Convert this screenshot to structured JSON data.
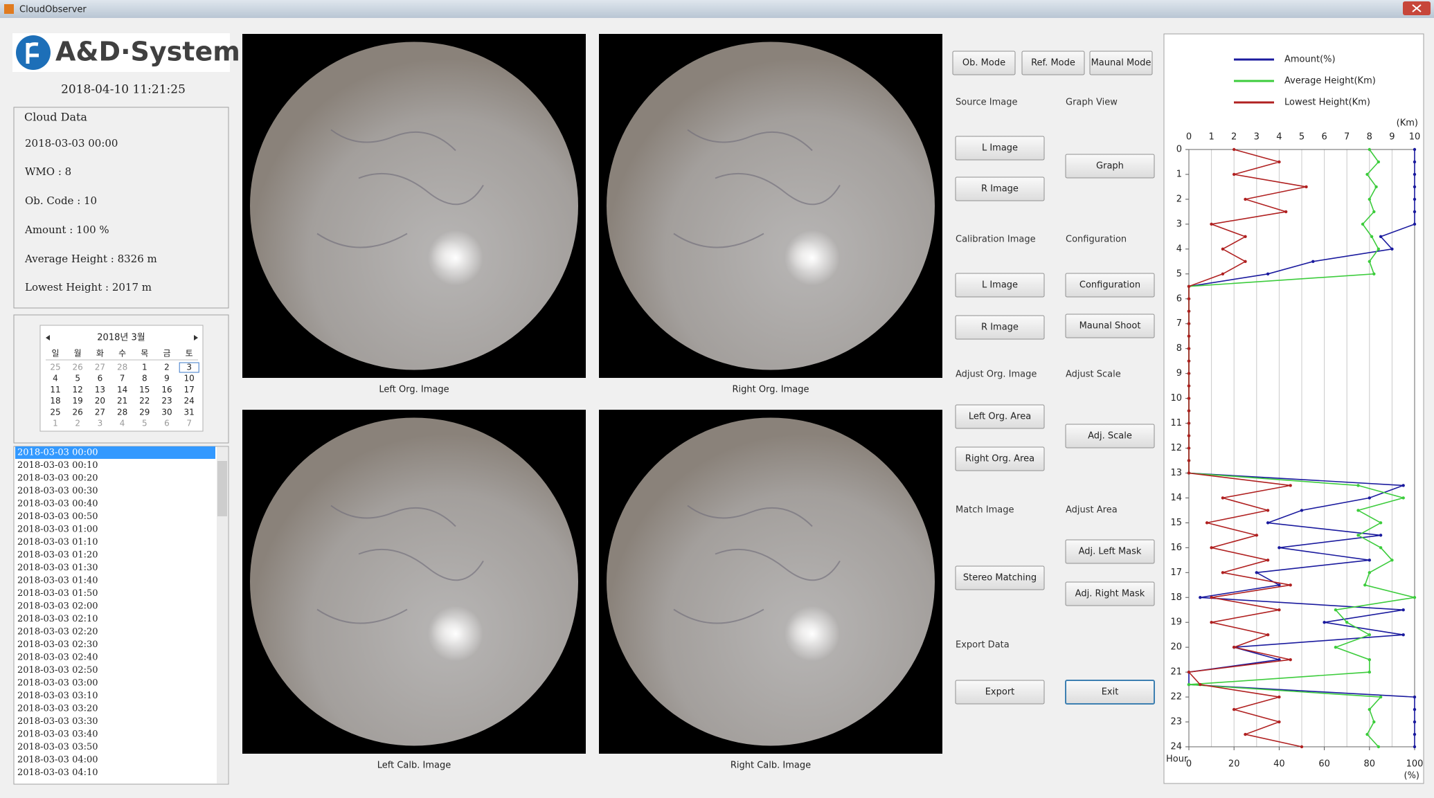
{
  "window_title": "CloudObserver",
  "logo": "A&D·System",
  "datetime": "2018-04-10 11:21:25",
  "cloud_data": {
    "title": "Cloud Data",
    "lines": [
      "2018-03-03 00:00",
      "WMO : 8",
      "Ob. Code : 10",
      "Amount : 100 %",
      "Average Height : 8326 m",
      "Lowest Height : 2017 m"
    ]
  },
  "calendar": {
    "header": "2018년 3월",
    "weekdays": [
      "일",
      "월",
      "화",
      "수",
      "목",
      "금",
      "토"
    ],
    "weeks": [
      [
        25,
        26,
        27,
        28,
        1,
        2,
        3
      ],
      [
        4,
        5,
        6,
        7,
        8,
        9,
        10
      ],
      [
        11,
        12,
        13,
        14,
        15,
        16,
        17
      ],
      [
        18,
        19,
        20,
        21,
        22,
        23,
        24
      ],
      [
        25,
        26,
        27,
        28,
        29,
        30,
        31
      ],
      [
        1,
        2,
        3,
        4,
        5,
        6,
        7
      ]
    ]
  },
  "time_list": [
    "2018-03-03 00:00",
    "2018-03-03 00:10",
    "2018-03-03 00:20",
    "2018-03-03 00:30",
    "2018-03-03 00:40",
    "2018-03-03 00:50",
    "2018-03-03 01:00",
    "2018-03-03 01:10",
    "2018-03-03 01:20",
    "2018-03-03 01:30",
    "2018-03-03 01:40",
    "2018-03-03 01:50",
    "2018-03-03 02:00",
    "2018-03-03 02:10",
    "2018-03-03 02:20",
    "2018-03-03 02:30",
    "2018-03-03 02:40",
    "2018-03-03 02:50",
    "2018-03-03 03:00",
    "2018-03-03 03:10",
    "2018-03-03 03:20",
    "2018-03-03 03:30",
    "2018-03-03 03:40",
    "2018-03-03 03:50",
    "2018-03-03 04:00",
    "2018-03-03 04:10"
  ],
  "images": [
    "Left Org. Image",
    "Right Org. Image",
    "Left Calb. Image",
    "Right Calb. Image"
  ],
  "mode_buttons": [
    "Ob. Mode",
    "Ref. Mode",
    "Maunal Mode"
  ],
  "sections": [
    {
      "label": "Source Image",
      "buttons": [
        "L Image",
        "R Image"
      ]
    },
    {
      "label": "Graph View",
      "buttons": [
        "Graph"
      ]
    },
    {
      "label": "Calibration Image",
      "buttons": [
        "L Image",
        "R Image"
      ]
    },
    {
      "label": "Configuration",
      "buttons": [
        "Configuration",
        "Maunal Shoot"
      ]
    },
    {
      "label": "Adjust Org. Image",
      "buttons": [
        "Left Org. Area",
        "Right Org. Area"
      ]
    },
    {
      "label": "Adjust Scale",
      "buttons": [
        "Adj. Scale"
      ]
    },
    {
      "label": "Match Image",
      "buttons": [
        "Stereo Matching"
      ]
    },
    {
      "label": "Adjust Area",
      "buttons": [
        "Adj. Left Mask",
        "Adj. Right Mask"
      ]
    },
    {
      "label": "Export Data",
      "buttons": [
        "Export"
      ]
    },
    {
      "buttons": [
        "Exit"
      ]
    }
  ],
  "chart_data": {
    "type": "line",
    "y_label": "Hour",
    "ylim": [
      0,
      24
    ],
    "yticks": [
      0,
      1,
      2,
      3,
      4,
      5,
      6,
      7,
      8,
      9,
      10,
      11,
      12,
      13,
      14,
      15,
      16,
      17,
      18,
      19,
      20,
      21,
      22,
      23,
      24
    ],
    "x_unit": "(Km)",
    "xlim": [
      0,
      10
    ],
    "xticks": [
      0,
      1,
      2,
      3,
      4,
      5,
      6,
      7,
      8,
      9,
      10
    ],
    "x2_unit": "(%)",
    "x2lim": [
      0,
      100
    ],
    "x2ticks": [
      0,
      20,
      40,
      60,
      80,
      100
    ],
    "grid": true,
    "hours": [
      0,
      0.5,
      1,
      1.5,
      2,
      2.5,
      3,
      3.5,
      4,
      4.5,
      5,
      5.5,
      6,
      6.5,
      7,
      7.5,
      8,
      8.5,
      9,
      9.5,
      10,
      10.5,
      11,
      11.5,
      12,
      12.5,
      13,
      13.5,
      14,
      14.5,
      15,
      15.5,
      16,
      16.5,
      17,
      17.5,
      18,
      18.5,
      19,
      19.5,
      20,
      20.5,
      21,
      21.5,
      22,
      22.5,
      23,
      23.5,
      24
    ],
    "series": [
      {
        "name": "Amount(%)",
        "color": "#1a1a9e",
        "axis": "x2",
        "values": [
          100,
          100,
          100,
          100,
          100,
          100,
          100,
          85,
          90,
          55,
          35,
          0,
          0,
          0,
          0,
          0,
          0,
          0,
          0,
          0,
          0,
          0,
          0,
          0,
          0,
          0,
          0,
          95,
          80,
          50,
          35,
          85,
          40,
          80,
          30,
          40,
          5,
          95,
          60,
          95,
          20,
          40,
          0,
          0,
          100,
          100,
          100,
          100,
          100
        ]
      },
      {
        "name": "Average Height(Km)",
        "color": "#3ccc3c",
        "axis": "x",
        "values": [
          8,
          8.4,
          7.9,
          8.3,
          8,
          8.2,
          7.7,
          8.1,
          8.4,
          8,
          8.2,
          0,
          0,
          0,
          0,
          0,
          0,
          0,
          0,
          0,
          0,
          0,
          0,
          0,
          0,
          0,
          0,
          7.5,
          9.5,
          7.5,
          8.5,
          7.5,
          8.5,
          9,
          8,
          7.8,
          10,
          6.5,
          7,
          8,
          6.5,
          8,
          8,
          0,
          8.5,
          8,
          8.2,
          7.9,
          8.4
        ]
      },
      {
        "name": "Lowest Height(Km)",
        "color": "#b02020",
        "axis": "x",
        "values": [
          2,
          4,
          2,
          5.2,
          2.5,
          4.3,
          1,
          2.5,
          1.5,
          2.5,
          1.5,
          0,
          0,
          0,
          0,
          0,
          0,
          0,
          0,
          0,
          0,
          0,
          0,
          0,
          0,
          0,
          0,
          4.5,
          1.5,
          3.5,
          0.8,
          3,
          1,
          3.5,
          1.5,
          4.5,
          1,
          4,
          1,
          3.5,
          2,
          4.5,
          0,
          0.5,
          4,
          2,
          4,
          2.5,
          5
        ]
      }
    ]
  }
}
